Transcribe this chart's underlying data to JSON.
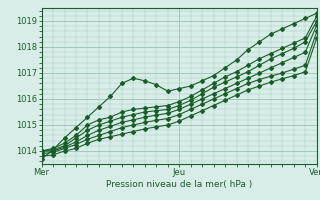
{
  "title": "",
  "xlabel": "Pression niveau de la mer( hPa )",
  "ylabel": "",
  "bg_color": "#d8ede8",
  "grid_color": "#a0c8b8",
  "line_color": "#1a5c2a",
  "xlim": [
    0,
    48
  ],
  "ylim": [
    1013.5,
    1019.5
  ],
  "yticks": [
    1014,
    1015,
    1016,
    1017,
    1018,
    1019
  ],
  "xtick_labels": [
    "Mer",
    "Jeu",
    "Ven"
  ],
  "xtick_positions": [
    0,
    24,
    48
  ],
  "series": [
    [
      0.0,
      1013.7,
      2.0,
      1014.05,
      4.0,
      1014.5,
      6.0,
      1014.9,
      8.0,
      1015.3,
      10.0,
      1015.7,
      12.0,
      1016.1,
      14.0,
      1016.6,
      16.0,
      1016.8,
      18.0,
      1016.7,
      20.0,
      1016.55,
      22.0,
      1016.3,
      24.0,
      1016.4,
      26.0,
      1016.5,
      28.0,
      1016.7,
      30.0,
      1016.9,
      32.0,
      1017.2,
      34.0,
      1017.5,
      36.0,
      1017.9,
      38.0,
      1018.2,
      40.0,
      1018.5,
      42.0,
      1018.7,
      44.0,
      1018.9,
      46.0,
      1019.1,
      48.0,
      1019.3
    ],
    [
      0.0,
      1014.0,
      2.0,
      1014.1,
      4.0,
      1014.3,
      6.0,
      1014.6,
      8.0,
      1015.0,
      10.0,
      1015.2,
      12.0,
      1015.3,
      14.0,
      1015.5,
      16.0,
      1015.6,
      18.0,
      1015.65,
      20.0,
      1015.7,
      22.0,
      1015.75,
      24.0,
      1015.9,
      26.0,
      1016.1,
      28.0,
      1016.35,
      30.0,
      1016.6,
      32.0,
      1016.85,
      34.0,
      1017.05,
      36.0,
      1017.3,
      38.0,
      1017.55,
      40.0,
      1017.75,
      42.0,
      1017.95,
      44.0,
      1018.15,
      46.0,
      1018.35,
      48.0,
      1019.2
    ],
    [
      0.0,
      1014.0,
      2.0,
      1014.05,
      4.0,
      1014.2,
      6.0,
      1014.5,
      8.0,
      1014.8,
      10.0,
      1015.0,
      12.0,
      1015.15,
      14.0,
      1015.3,
      16.0,
      1015.4,
      18.0,
      1015.5,
      20.0,
      1015.55,
      22.0,
      1015.6,
      24.0,
      1015.75,
      26.0,
      1015.95,
      28.0,
      1016.2,
      30.0,
      1016.45,
      32.0,
      1016.65,
      34.0,
      1016.85,
      36.0,
      1017.05,
      38.0,
      1017.3,
      40.0,
      1017.55,
      42.0,
      1017.75,
      44.0,
      1017.95,
      46.0,
      1018.2,
      48.0,
      1019.0
    ],
    [
      0.0,
      1014.0,
      2.0,
      1014.0,
      4.0,
      1014.15,
      6.0,
      1014.35,
      8.0,
      1014.6,
      10.0,
      1014.8,
      12.0,
      1014.95,
      14.0,
      1015.1,
      16.0,
      1015.2,
      18.0,
      1015.3,
      20.0,
      1015.38,
      22.0,
      1015.45,
      24.0,
      1015.6,
      26.0,
      1015.8,
      28.0,
      1016.0,
      30.0,
      1016.2,
      32.0,
      1016.4,
      34.0,
      1016.6,
      36.0,
      1016.8,
      38.0,
      1017.0,
      40.0,
      1017.2,
      42.0,
      1017.4,
      44.0,
      1017.6,
      46.0,
      1017.8,
      48.0,
      1018.85
    ],
    [
      0.0,
      1013.9,
      2.0,
      1013.95,
      4.0,
      1014.1,
      6.0,
      1014.25,
      8.0,
      1014.45,
      10.0,
      1014.6,
      12.0,
      1014.75,
      14.0,
      1014.9,
      16.0,
      1015.0,
      18.0,
      1015.1,
      20.0,
      1015.18,
      22.0,
      1015.25,
      24.0,
      1015.4,
      26.0,
      1015.6,
      28.0,
      1015.8,
      30.0,
      1016.0,
      32.0,
      1016.2,
      34.0,
      1016.4,
      36.0,
      1016.6,
      38.0,
      1016.75,
      40.0,
      1016.88,
      42.0,
      1017.0,
      44.0,
      1017.15,
      46.0,
      1017.3,
      48.0,
      1018.6
    ],
    [
      0.0,
      1013.8,
      2.0,
      1013.85,
      4.0,
      1014.0,
      6.0,
      1014.1,
      8.0,
      1014.3,
      10.0,
      1014.45,
      12.0,
      1014.55,
      14.0,
      1014.65,
      16.0,
      1014.75,
      18.0,
      1014.85,
      20.0,
      1014.93,
      22.0,
      1015.0,
      24.0,
      1015.15,
      26.0,
      1015.35,
      28.0,
      1015.55,
      30.0,
      1015.75,
      32.0,
      1015.95,
      34.0,
      1016.15,
      36.0,
      1016.35,
      38.0,
      1016.5,
      40.0,
      1016.65,
      42.0,
      1016.78,
      44.0,
      1016.9,
      46.0,
      1017.05,
      48.0,
      1018.35
    ]
  ]
}
